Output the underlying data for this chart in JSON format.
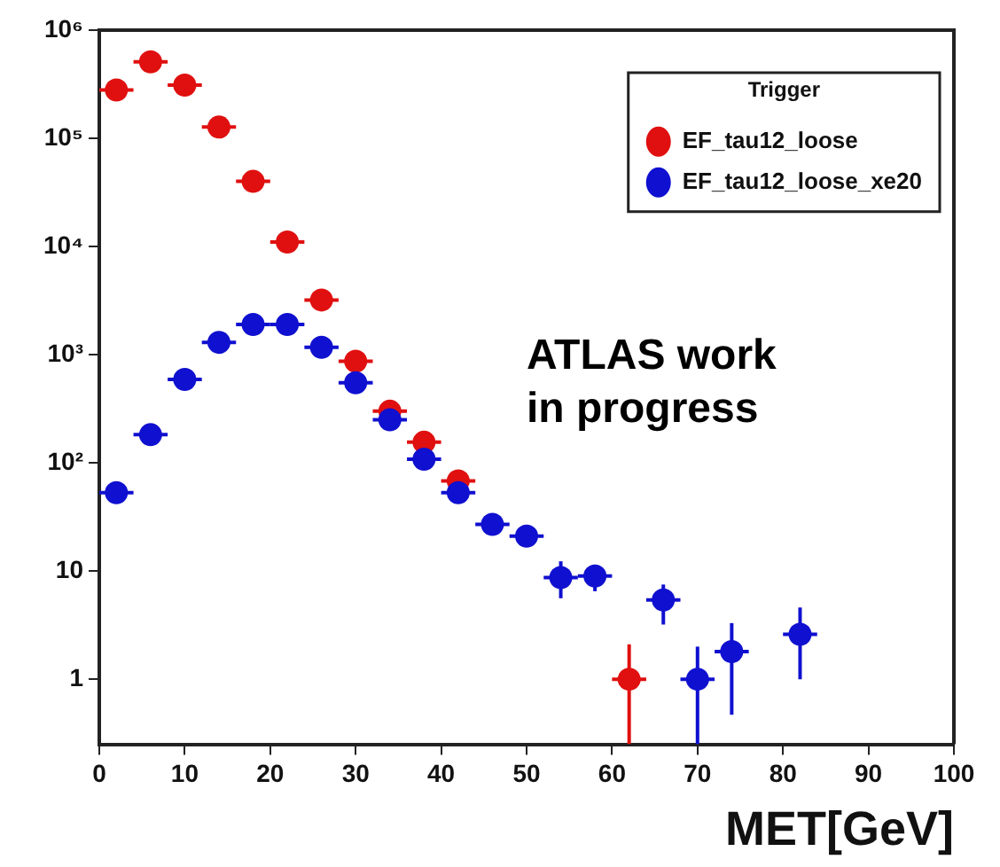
{
  "chart_data": {
    "type": "scatter",
    "xlabel": "MET[GeV]",
    "legend_title": "Trigger",
    "legend": "top right",
    "log": "y",
    "marker": "circle",
    "grid": false,
    "xlim": [
      0,
      100
    ],
    "xticks": [
      0,
      10,
      20,
      30,
      40,
      50,
      60,
      70,
      80,
      90,
      100
    ],
    "ylim": [
      0.25,
      1000000
    ],
    "yticks": [
      1,
      10,
      {
        "value": 100,
        "label": "10²"
      },
      {
        "value": 1000,
        "label": "10³"
      },
      {
        "value": 10000,
        "label": "10⁴"
      },
      {
        "value": 100000,
        "label": "10⁵"
      },
      {
        "value": 1000000,
        "label": "10⁶"
      }
    ],
    "annotations": [
      "ATLAS work in progress"
    ],
    "series": [
      {
        "name": "EF_tau12_loose",
        "color": "#e01010",
        "x": [
          2,
          6,
          10,
          14,
          18,
          22,
          26,
          30,
          34,
          38,
          42,
          46,
          50,
          62
        ],
        "values": [
          280000,
          510000,
          310000,
          127000,
          40000,
          11000,
          3200,
          870,
          300,
          155,
          68,
          null,
          null,
          1
        ],
        "xerrors": [
          2,
          2,
          2,
          2,
          2,
          2,
          2,
          2,
          2,
          2,
          2,
          null,
          null,
          2
        ],
        "errors": [
          null,
          null,
          null,
          null,
          null,
          null,
          null,
          null,
          null,
          null,
          null,
          null,
          null,
          [
            0.25,
            2.1
          ]
        ]
      },
      {
        "name": "EF_tau12_loose_xe20",
        "color": "#1010d0",
        "x": [
          2,
          6,
          10,
          14,
          18,
          22,
          26,
          30,
          34,
          38,
          42,
          46,
          50,
          54,
          58,
          66,
          70,
          74,
          82
        ],
        "values": [
          53,
          182,
          590,
          1300,
          1900,
          1900,
          1170,
          550,
          250,
          108,
          53,
          27,
          21,
          8.7,
          9,
          5.4,
          1,
          1.8,
          2.6
        ],
        "xerrors": [
          2,
          2,
          2,
          2,
          2,
          2,
          2,
          2,
          2,
          2,
          2,
          2,
          2,
          2,
          2,
          2,
          2,
          2,
          2
        ],
        "errors": [
          null,
          null,
          null,
          null,
          null,
          null,
          null,
          null,
          null,
          null,
          null,
          null,
          null,
          [
            5.6,
            12.3
          ],
          [
            6.5,
            11
          ],
          [
            3.2,
            7.5
          ],
          [
            0.25,
            2
          ],
          [
            0.47,
            3.3
          ],
          [
            1,
            4.6
          ]
        ]
      }
    ]
  }
}
